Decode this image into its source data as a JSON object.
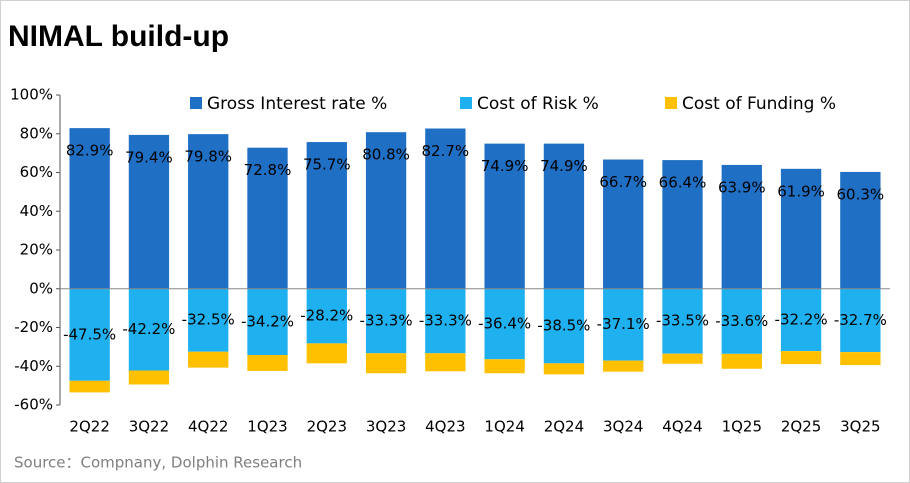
{
  "chart_data": {
    "type": "stacked-bar",
    "title": "NIMAL build-up",
    "source": "Source：Compnany, Dolphin Research",
    "categories": [
      "2Q22",
      "3Q22",
      "4Q22",
      "1Q23",
      "2Q23",
      "3Q23",
      "4Q23",
      "1Q24",
      "2Q24",
      "3Q24",
      "4Q24",
      "1Q25",
      "2Q25",
      "3Q25"
    ],
    "series": [
      {
        "name": "Gross Interest rate %",
        "color": "#1f6fc5",
        "values": [
          82.9,
          79.4,
          79.8,
          72.8,
          75.7,
          80.8,
          82.7,
          74.9,
          74.9,
          66.7,
          66.4,
          63.9,
          61.9,
          60.3
        ],
        "value_labels": [
          "82.9%",
          "79.4%",
          "79.8%",
          "72.8%",
          "75.7%",
          "80.8%",
          "82.7%",
          "74.9%",
          "74.9%",
          "66.7%",
          "66.4%",
          "63.9%",
          "61.9%",
          "60.3%"
        ]
      },
      {
        "name": "Cost of Risk %",
        "color": "#1fb0ef",
        "values": [
          -47.5,
          -42.2,
          -32.5,
          -34.2,
          -28.2,
          -33.3,
          -33.3,
          -36.4,
          -38.5,
          -37.1,
          -33.5,
          -33.6,
          -32.2,
          -32.7
        ],
        "value_labels": [
          "-47.5%",
          "-42.2%",
          "-32.5%",
          "-34.2%",
          "-28.2%",
          "-33.3%",
          "-33.3%",
          "-36.4%",
          "-38.5%",
          "-37.1%",
          "-33.5%",
          "-33.6%",
          "-32.2%",
          "-32.7%"
        ]
      },
      {
        "name": "Cost of Funding %",
        "color": "#ffc000",
        "values": [
          -6.0,
          -7.2,
          -8.2,
          -8.2,
          -10.3,
          -10.3,
          -9.3,
          -7.2,
          -5.7,
          -5.7,
          -5.2,
          -7.7,
          -6.7,
          -6.7
        ]
      }
    ],
    "ylim": [
      -60,
      100
    ],
    "yticks": [
      {
        "value": -60,
        "label": "-60%"
      },
      {
        "value": -40,
        "label": "-40%"
      },
      {
        "value": -20,
        "label": "-20%"
      },
      {
        "value": 0,
        "label": "0%"
      },
      {
        "value": 20,
        "label": "20%"
      },
      {
        "value": 40,
        "label": "40%"
      },
      {
        "value": 60,
        "label": "60%"
      },
      {
        "value": 80,
        "label": "80%"
      },
      {
        "value": 100,
        "label": "100%"
      }
    ]
  }
}
